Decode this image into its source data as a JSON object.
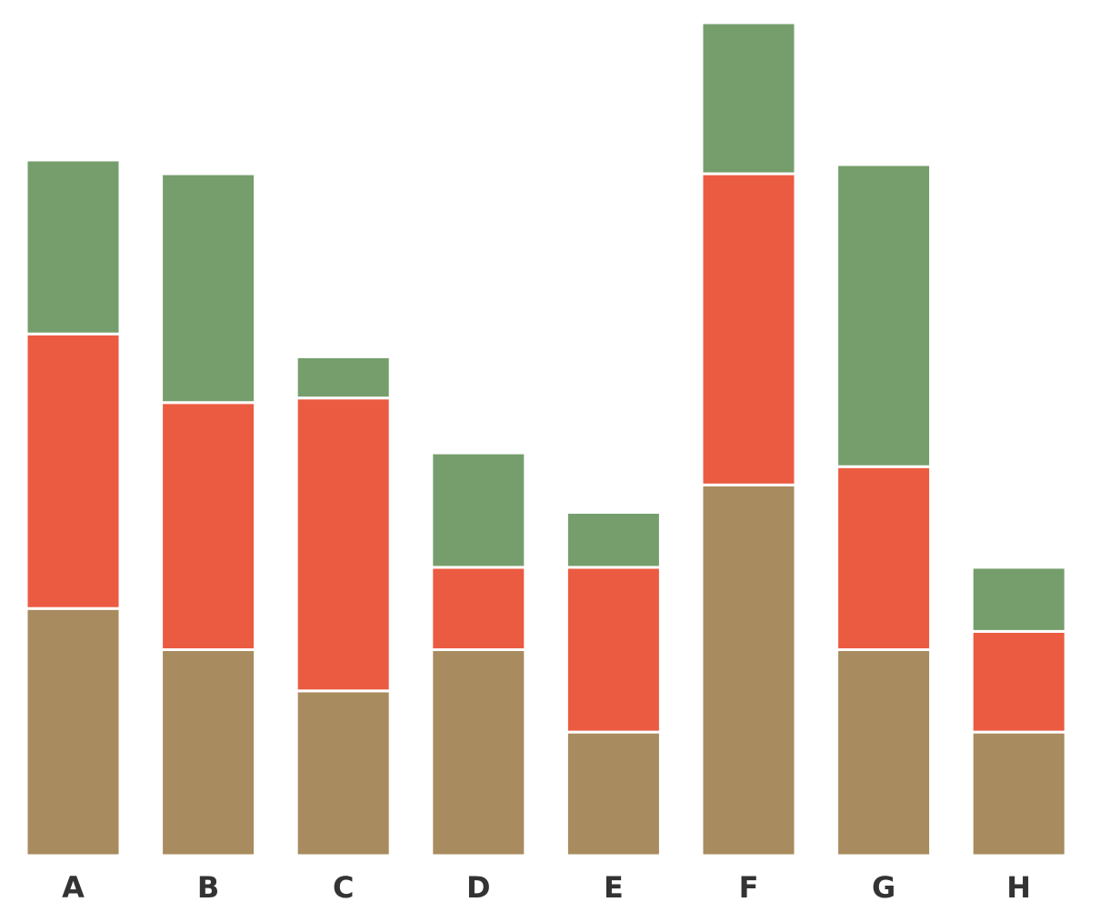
{
  "chart_data": {
    "type": "stacked_bar",
    "categories": [
      "A",
      "B",
      "C",
      "D",
      "E",
      "F",
      "G",
      "H"
    ],
    "series": [
      {
        "color": "#a88b5e",
        "values": [
          27,
          22.5,
          18,
          22.5,
          13.5,
          40.5,
          22.5,
          13.5
        ]
      },
      {
        "color": "#eb5b41",
        "values": [
          30,
          27,
          32,
          9,
          18,
          34,
          20,
          11
        ]
      },
      {
        "color": "#759e6c",
        "values": [
          19,
          25,
          4.5,
          12.5,
          6,
          16.5,
          33,
          7
        ]
      }
    ]
  }
}
